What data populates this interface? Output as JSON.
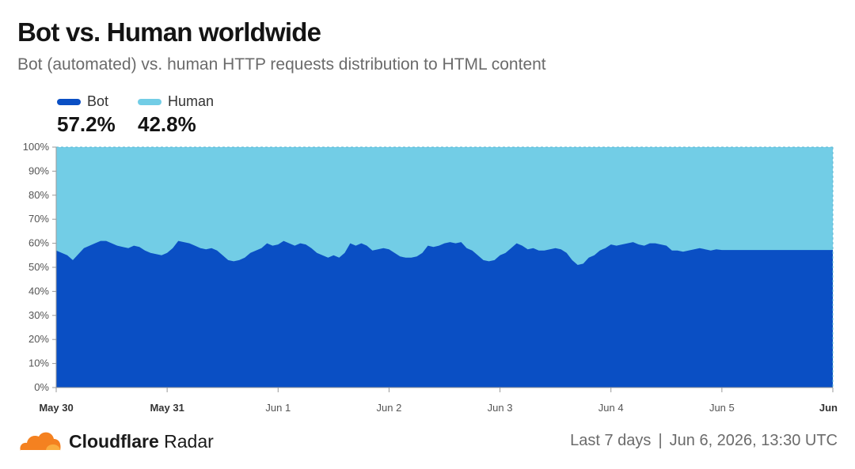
{
  "header": {
    "title": "Bot vs. Human worldwide",
    "subtitle": "Bot (automated) vs. human HTTP requests distribution to HTML content"
  },
  "legend": [
    {
      "name": "Bot",
      "value": "57.2%",
      "color": "#0a4fc4"
    },
    {
      "name": "Human",
      "value": "42.8%",
      "color": "#72cde6"
    }
  ],
  "chart_data": {
    "type": "area",
    "stacked": true,
    "grid": false,
    "ylim": [
      0,
      100
    ],
    "y_ticks": [
      "0%",
      "10%",
      "20%",
      "30%",
      "40%",
      "50%",
      "60%",
      "70%",
      "80%",
      "90%",
      "100%"
    ],
    "x_ticks": [
      {
        "label": "May 30",
        "pos": 0,
        "bold": true
      },
      {
        "label": "May 31",
        "pos": 1,
        "bold": true
      },
      {
        "label": "Jun 1",
        "pos": 2,
        "bold": false
      },
      {
        "label": "Jun 2",
        "pos": 3,
        "bold": false
      },
      {
        "label": "Jun 3",
        "pos": 4,
        "bold": false
      },
      {
        "label": "Jun 4",
        "pos": 5,
        "bold": false
      },
      {
        "label": "Jun 5",
        "pos": 6,
        "bold": false
      },
      {
        "label": "Jun",
        "pos": 7,
        "bold": true
      }
    ],
    "xlim": [
      0,
      7
    ],
    "series": [
      {
        "name": "Bot",
        "color": "#0a4fc4",
        "x": [
          0,
          0.05,
          0.1,
          0.15,
          0.25,
          0.35,
          0.4,
          0.45,
          0.5,
          0.55,
          0.6,
          0.65,
          0.7,
          0.75,
          0.8,
          0.85,
          0.9,
          0.95,
          1,
          1.05,
          1.1,
          1.2,
          1.25,
          1.3,
          1.35,
          1.4,
          1.45,
          1.5,
          1.55,
          1.6,
          1.65,
          1.7,
          1.75,
          1.8,
          1.85,
          1.9,
          1.95,
          2,
          2.05,
          2.1,
          2.15,
          2.2,
          2.25,
          2.3,
          2.35,
          2.4,
          2.45,
          2.5,
          2.55,
          2.6,
          2.65,
          2.7,
          2.75,
          2.8,
          2.85,
          2.9,
          2.95,
          3,
          3.05,
          3.1,
          3.15,
          3.2,
          3.25,
          3.3,
          3.35,
          3.4,
          3.45,
          3.5,
          3.55,
          3.6,
          3.65,
          3.7,
          3.75,
          3.8,
          3.85,
          3.9,
          3.95,
          4,
          4.05,
          4.1,
          4.15,
          4.2,
          4.25,
          4.3,
          4.35,
          4.4,
          4.45,
          4.5,
          4.55,
          4.6,
          4.65,
          4.7,
          4.75,
          4.8,
          4.85,
          4.9,
          4.95,
          5,
          5.05,
          5.1,
          5.15,
          5.2,
          5.25,
          5.3,
          5.35,
          5.4,
          5.45,
          5.5,
          5.55,
          5.6,
          5.65,
          5.7,
          5.75,
          5.8,
          5.85,
          5.9,
          5.95,
          6,
          6.05,
          6.1,
          6.15,
          6.2,
          6.25,
          6.3,
          6.35,
          6.4,
          6.45,
          6.5,
          6.55,
          6.6,
          6.65,
          6.7,
          6.75,
          6.8,
          6.85,
          6.9,
          6.95,
          7
        ],
        "values": [
          57,
          56,
          55,
          53,
          58,
          60,
          61,
          61,
          60,
          59,
          58.5,
          58,
          59,
          58.5,
          57,
          56,
          55.5,
          55,
          56,
          58,
          61,
          60,
          59,
          58,
          57.5,
          58,
          57,
          55,
          53,
          52.5,
          53,
          54,
          56,
          57,
          58,
          60,
          59,
          59.5,
          61,
          60,
          59,
          60,
          59.5,
          58,
          56,
          55,
          54,
          55,
          54,
          56,
          60,
          59,
          60,
          59,
          57,
          57.5,
          58,
          57.5,
          56,
          54.5,
          54,
          54,
          54.5,
          56,
          59,
          58.5,
          59,
          60,
          60.5,
          60,
          60.5,
          58,
          57,
          55,
          53,
          52.5,
          53,
          55,
          56,
          58,
          60,
          59,
          57.5,
          58,
          57,
          57,
          57.5,
          58,
          57.5,
          56,
          53,
          51,
          51.5,
          54,
          55,
          57,
          58,
          59.5,
          59,
          59.5,
          60,
          60.5,
          59.5,
          59,
          60,
          60,
          59.5,
          59,
          57,
          57,
          56.5,
          57,
          57.5,
          58,
          57.5,
          57,
          57.5,
          57.2,
          57.2,
          57.2,
          57.2,
          57.2,
          57.2,
          57.2,
          57.2,
          57.2,
          57.2,
          57.2,
          57.2,
          57.2,
          57.2,
          57.2,
          57.2,
          57.2,
          57.2,
          57.2,
          57.2,
          57.2
        ]
      },
      {
        "name": "Human",
        "color": "#72cde6",
        "values_note": ""
      }
    ]
  },
  "footer": {
    "brand_bold": "Cloudflare",
    "brand_rest": " Radar",
    "period": "Last 7 days",
    "separator": "|",
    "timestamp": "Jun 6, 2026, 13:30 UTC"
  }
}
